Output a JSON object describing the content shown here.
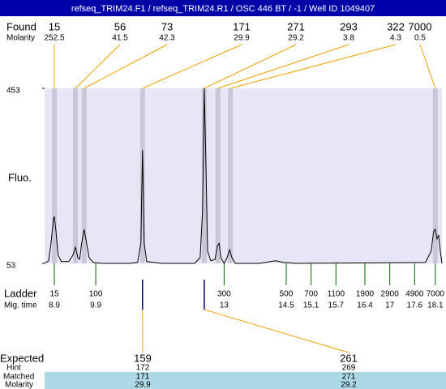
{
  "chart_data": {
    "type": "line",
    "title": "refseq_TRIM24.F1 / refseq_TRIM24.R1 / OSC 446 BT  / -1 / Well ID 1049407",
    "y_label": "Fluo.",
    "ylim": [
      53,
      453
    ],
    "yticks": [
      53,
      453
    ],
    "xlim": [
      8.665,
      18.26
    ],
    "color": "#000000",
    "x": [
      8.67,
      8.76,
      8.82,
      8.88,
      8.9,
      8.94,
      8.99,
      9.07,
      9.25,
      9.35,
      9.41,
      9.47,
      9.51,
      9.56,
      9.62,
      9.68,
      9.74,
      9.84,
      10.04,
      10.72,
      10.91,
      10.99,
      11.03,
      11.07,
      11.13,
      11.5,
      12.29,
      12.42,
      12.48,
      12.52,
      12.56,
      12.6,
      12.68,
      12.78,
      12.84,
      12.88,
      12.92,
      13.0,
      13.07,
      13.13,
      13.19,
      13.27,
      13.85,
      14.24,
      14.44,
      14.73,
      17.86,
      18.0,
      18.06,
      18.1,
      18.14,
      18.18,
      18.22,
      18.26
    ],
    "values": [
      53,
      59,
      99,
      155,
      160,
      127,
      72,
      57,
      57,
      72,
      90,
      66,
      62,
      99,
      131,
      99,
      66,
      55,
      53,
      53,
      55,
      99,
      312,
      99,
      57,
      53,
      53,
      66,
      173,
      453,
      284,
      81,
      59,
      62,
      94,
      99,
      66,
      53,
      66,
      84,
      66,
      53,
      53,
      59,
      55,
      53,
      55,
      81,
      127,
      131,
      109,
      118,
      81,
      53
    ],
    "found": {
      "label": "Found",
      "molarity_label": "Molarity",
      "sizes": [
        15,
        56,
        73,
        171,
        271,
        293,
        322,
        7000
      ],
      "molarities": [
        252.5,
        41.5,
        42.3,
        29.9,
        29.2,
        3.8,
        4.3,
        0.5
      ],
      "times": [
        8.9,
        9.41,
        9.62,
        11.03,
        12.52,
        12.85,
        13.15,
        18.1
      ]
    },
    "ladder": {
      "label": "Ladder",
      "time_label": "Mig. time",
      "sizes": [
        15,
        100,
        300,
        500,
        700,
        1100,
        1900,
        2900,
        4900,
        7000
      ],
      "times": [
        8.9,
        9.9,
        13,
        14.5,
        15.1,
        15.7,
        16.4,
        17,
        17.6,
        18.1
      ]
    },
    "expected": {
      "label": "Expected",
      "hint_label": "Hint",
      "matched_label": "Matched",
      "molarity_label": "Molarity",
      "sizes": [
        159,
        261
      ],
      "hints": [
        172,
        269
      ],
      "matched": [
        171,
        271
      ],
      "molarities": [
        29.9,
        29.2
      ],
      "times": [
        11.03,
        12.52
      ]
    }
  }
}
